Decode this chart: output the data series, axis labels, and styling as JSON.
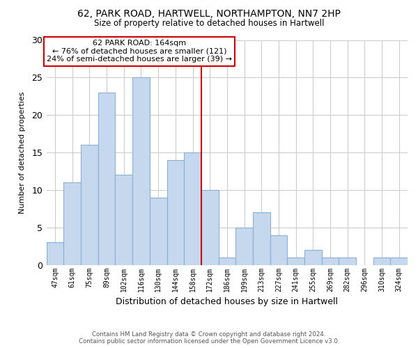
{
  "title1": "62, PARK ROAD, HARTWELL, NORTHAMPTON, NN7 2HP",
  "title2": "Size of property relative to detached houses in Hartwell",
  "xlabel": "Distribution of detached houses by size in Hartwell",
  "ylabel": "Number of detached properties",
  "bar_labels": [
    "47sqm",
    "61sqm",
    "75sqm",
    "89sqm",
    "102sqm",
    "116sqm",
    "130sqm",
    "144sqm",
    "158sqm",
    "172sqm",
    "186sqm",
    "199sqm",
    "213sqm",
    "227sqm",
    "241sqm",
    "255sqm",
    "269sqm",
    "282sqm",
    "296sqm",
    "310sqm",
    "324sqm"
  ],
  "bar_values": [
    3,
    11,
    16,
    23,
    12,
    25,
    9,
    14,
    15,
    10,
    1,
    5,
    7,
    4,
    1,
    2,
    1,
    1,
    0,
    1,
    1
  ],
  "bar_color": "#c5d8ed",
  "bar_edge_color": "#8aafd4",
  "vline_x": 8.5,
  "vline_color": "#cc0000",
  "annotation_title": "62 PARK ROAD: 164sqm",
  "annotation_line1": "← 76% of detached houses are smaller (121)",
  "annotation_line2": "24% of semi-detached houses are larger (39) →",
  "annotation_box_color": "#ffffff",
  "annotation_box_edge": "#cc0000",
  "ylim": [
    0,
    30
  ],
  "yticks": [
    0,
    5,
    10,
    15,
    20,
    25,
    30
  ],
  "footer1": "Contains HM Land Registry data © Crown copyright and database right 2024.",
  "footer2": "Contains public sector information licensed under the Open Government Licence v3.0.",
  "bg_color": "#ffffff",
  "grid_color": "#cccccc"
}
